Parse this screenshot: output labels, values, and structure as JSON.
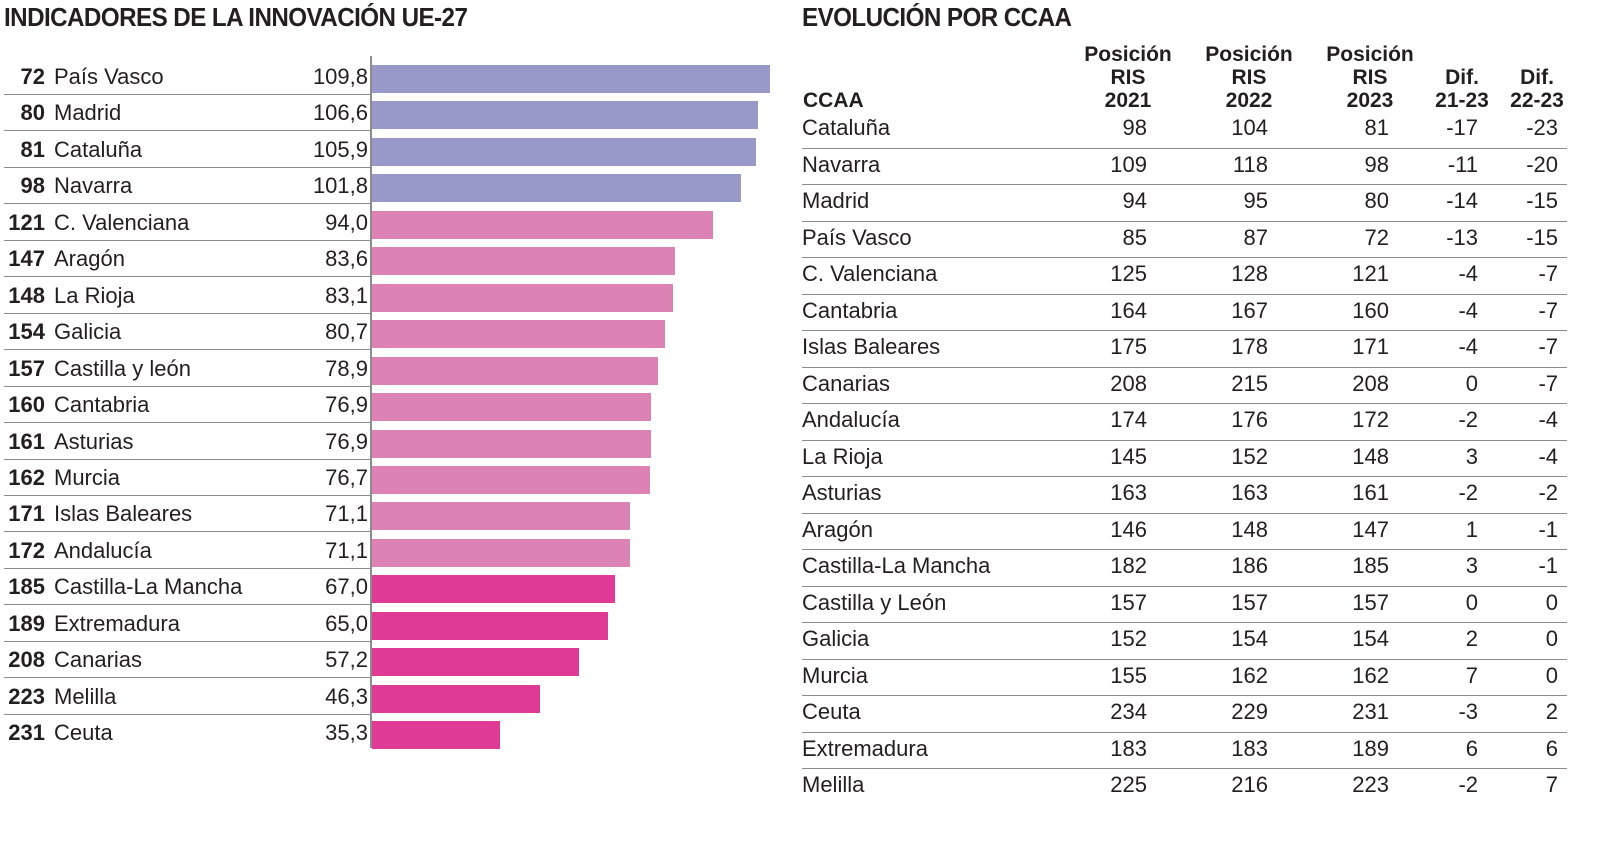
{
  "left_title": "INDICADORES DE LA INNOVACIÓN UE-27",
  "right_title": "EVOLUCIÓN POR CCAA",
  "colors": {
    "top": "#9999c9",
    "mid": "#dd82b5",
    "low": "#df3a95",
    "rule": "#8c8c8c",
    "text": "#231f20"
  },
  "chart_data": {
    "type": "bar",
    "orientation": "horizontal",
    "title": "INDICADORES DE LA INNOVACIÓN UE-27",
    "xlabel": "",
    "ylabel": "",
    "xlim": [
      0,
      110
    ],
    "grid": false,
    "legend": "none",
    "categories": [
      "País Vasco",
      "Madrid",
      "Cataluña",
      "Navarra",
      "C. Valenciana",
      "Aragón",
      "La Rioja",
      "Galicia",
      "Castilla y león",
      "Cantabria",
      "Asturias",
      "Murcia",
      "Islas Baleares",
      "Andalucía",
      "Castilla-La Mancha",
      "Extremadura",
      "Canarias",
      "Melilla",
      "Ceuta"
    ],
    "ranks": [
      "72",
      "80",
      "81",
      "98",
      "121",
      "147",
      "148",
      "154",
      "157",
      "160",
      "161",
      "162",
      "171",
      "172",
      "185",
      "189",
      "208",
      "223",
      "231"
    ],
    "values": [
      109.8,
      106.6,
      105.9,
      101.8,
      94.0,
      83.6,
      83.1,
      80.7,
      78.9,
      76.9,
      76.9,
      76.7,
      71.1,
      71.1,
      67.0,
      65.0,
      57.2,
      46.3,
      35.3
    ],
    "value_labels": [
      "109,8",
      "106,6",
      "105,9",
      "101,8",
      "94,0",
      "83,6",
      "83,1",
      "80,7",
      "78,9",
      "76,9",
      "76,9",
      "76,7",
      "71,1",
      "71,1",
      "67,0",
      "65,0",
      "57,2",
      "46,3",
      "35,3"
    ],
    "color_groups": [
      "top",
      "top",
      "top",
      "top",
      "mid",
      "mid",
      "mid",
      "mid",
      "mid",
      "mid",
      "mid",
      "mid",
      "mid",
      "mid",
      "low",
      "low",
      "low",
      "low",
      "low"
    ]
  },
  "table": {
    "headers": [
      "CCAA",
      "Posición\nRIS\n2021",
      "Posición\nRIS\n2022",
      "Posición\nRIS\n2023",
      "Dif.\n21-23",
      "Dif.\n22-23"
    ],
    "rows": [
      [
        "Cataluña",
        "98",
        "104",
        "81",
        "-17",
        "-23"
      ],
      [
        "Navarra",
        "109",
        "118",
        "98",
        "-11",
        "-20"
      ],
      [
        "Madrid",
        "94",
        "95",
        "80",
        "-14",
        "-15"
      ],
      [
        "País Vasco",
        "85",
        "87",
        "72",
        "-13",
        "-15"
      ],
      [
        "C. Valenciana",
        "125",
        "128",
        "121",
        "-4",
        "-7"
      ],
      [
        "Cantabria",
        "164",
        "167",
        "160",
        "-4",
        "-7"
      ],
      [
        "Islas Baleares",
        "175",
        "178",
        "171",
        "-4",
        "-7"
      ],
      [
        "Canarias",
        "208",
        "215",
        "208",
        "0",
        "-7"
      ],
      [
        "Andalucía",
        "174",
        "176",
        "172",
        "-2",
        "-4"
      ],
      [
        "La Rioja",
        "145",
        "152",
        "148",
        "3",
        "-4"
      ],
      [
        "Asturias",
        "163",
        "163",
        "161",
        "-2",
        "-2"
      ],
      [
        "Aragón",
        "146",
        "148",
        "147",
        "1",
        "-1"
      ],
      [
        "Castilla-La Mancha",
        "182",
        "186",
        "185",
        "3",
        "-1"
      ],
      [
        "Castilla y León",
        "157",
        "157",
        "157",
        "0",
        "0"
      ],
      [
        "Galicia",
        "152",
        "154",
        "154",
        "2",
        "0"
      ],
      [
        "Murcia",
        "155",
        "162",
        "162",
        "7",
        "0"
      ],
      [
        "Ceuta",
        "234",
        "229",
        "231",
        "-3",
        "2"
      ],
      [
        "Extremadura",
        "183",
        "183",
        "189",
        "6",
        "6"
      ],
      [
        "Melilla",
        "225",
        "216",
        "223",
        "-2",
        "7"
      ]
    ]
  }
}
